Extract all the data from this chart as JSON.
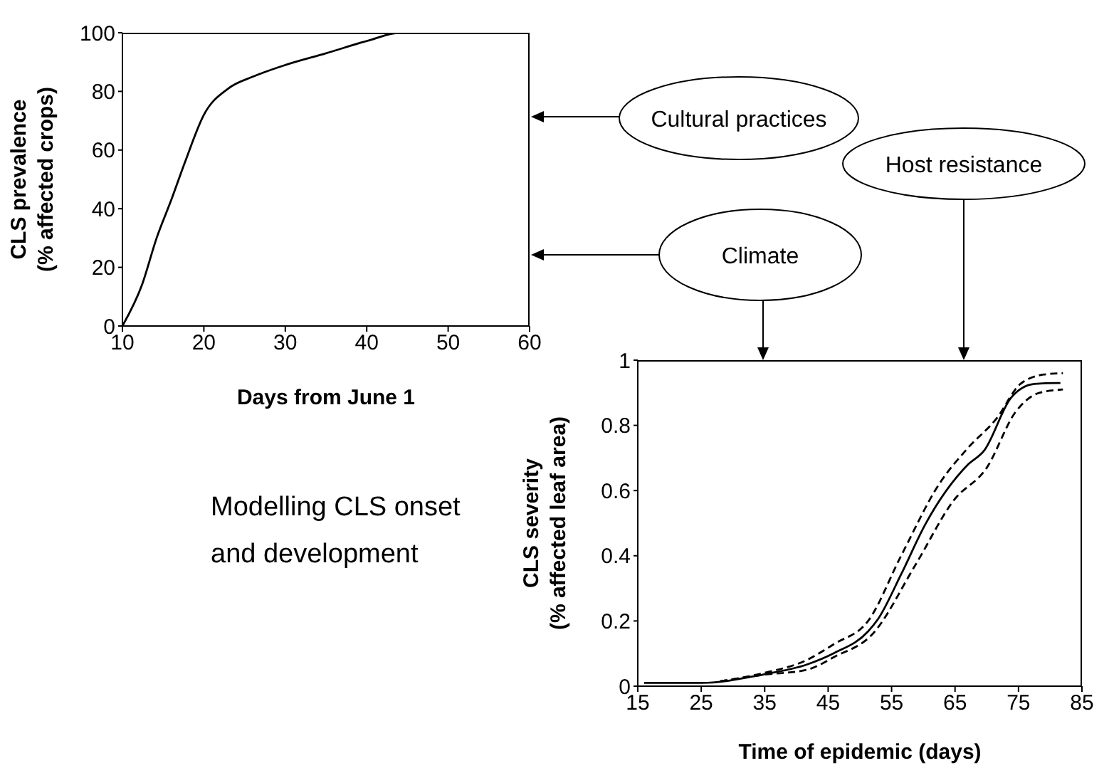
{
  "chart_data": [
    {
      "type": "line",
      "xlabel": "Days from June 1",
      "ylabel": "CLS prevalence (% affected crops)",
      "color": "#000000",
      "x": [
        10,
        12.4,
        14.2,
        16,
        17.7,
        20,
        23,
        26,
        30,
        35,
        40.4,
        44,
        49
      ],
      "values": [
        0,
        14,
        30,
        43,
        56,
        72,
        81,
        85,
        89,
        93,
        97.5,
        100,
        100
      ],
      "xlim": [
        10,
        60
      ],
      "xticks": [
        10,
        20,
        30,
        40,
        50,
        60
      ],
      "ylim": [
        0,
        100
      ],
      "yticks": [
        0,
        20,
        40,
        60,
        80,
        100
      ]
    },
    {
      "type": "line",
      "xlabel": "Time of epidemic (days)",
      "ylabel": "CLS severity (% affected leaf area)",
      "xlim": [
        15,
        85
      ],
      "xticks": [
        15,
        25,
        35,
        45,
        55,
        65,
        75,
        85
      ],
      "ylim": [
        0,
        1
      ],
      "yticks": [
        0,
        0.2,
        0.4,
        0.6,
        0.8,
        1
      ],
      "series": [
        {
          "color": "#000000",
          "line_style": "solid",
          "x": [
            16,
            25.1,
            34.8,
            41.6,
            46,
            51.3,
            52.8,
            56.5,
            60.3,
            67,
            69.6,
            73.8,
            77.5,
            81,
            81.6
          ],
          "values": [
            0.01,
            0.01,
            0.036,
            0.066,
            0.102,
            0.168,
            0.204,
            0.343,
            0.496,
            0.679,
            0.723,
            0.884,
            0.927,
            0.93,
            0.93
          ]
        },
        {
          "color": "#000000",
          "line_style": "dashed",
          "x": [
            28,
            34.8,
            41.6,
            46,
            51.3,
            56.5,
            62.5,
            67,
            71.5,
            75.3,
            79,
            82
          ],
          "values": [
            0.015,
            0.04,
            0.08,
            0.13,
            0.2,
            0.4,
            0.62,
            0.73,
            0.82,
            0.927,
            0.956,
            0.96
          ]
        },
        {
          "color": "#000000",
          "line_style": "dashed",
          "x": [
            28,
            34.8,
            41.6,
            46,
            52,
            58.7,
            64.8,
            70,
            74.5,
            78.3,
            82
          ],
          "values": [
            0.015,
            0.035,
            0.05,
            0.09,
            0.16,
            0.37,
            0.57,
            0.67,
            0.84,
            0.9,
            0.91
          ]
        }
      ]
    },
    {
      "type": "other",
      "annotations": [
        "Cultural practices",
        "Host resistance",
        "Climate",
        "Modelling CLS onset and development"
      ]
    }
  ]
}
